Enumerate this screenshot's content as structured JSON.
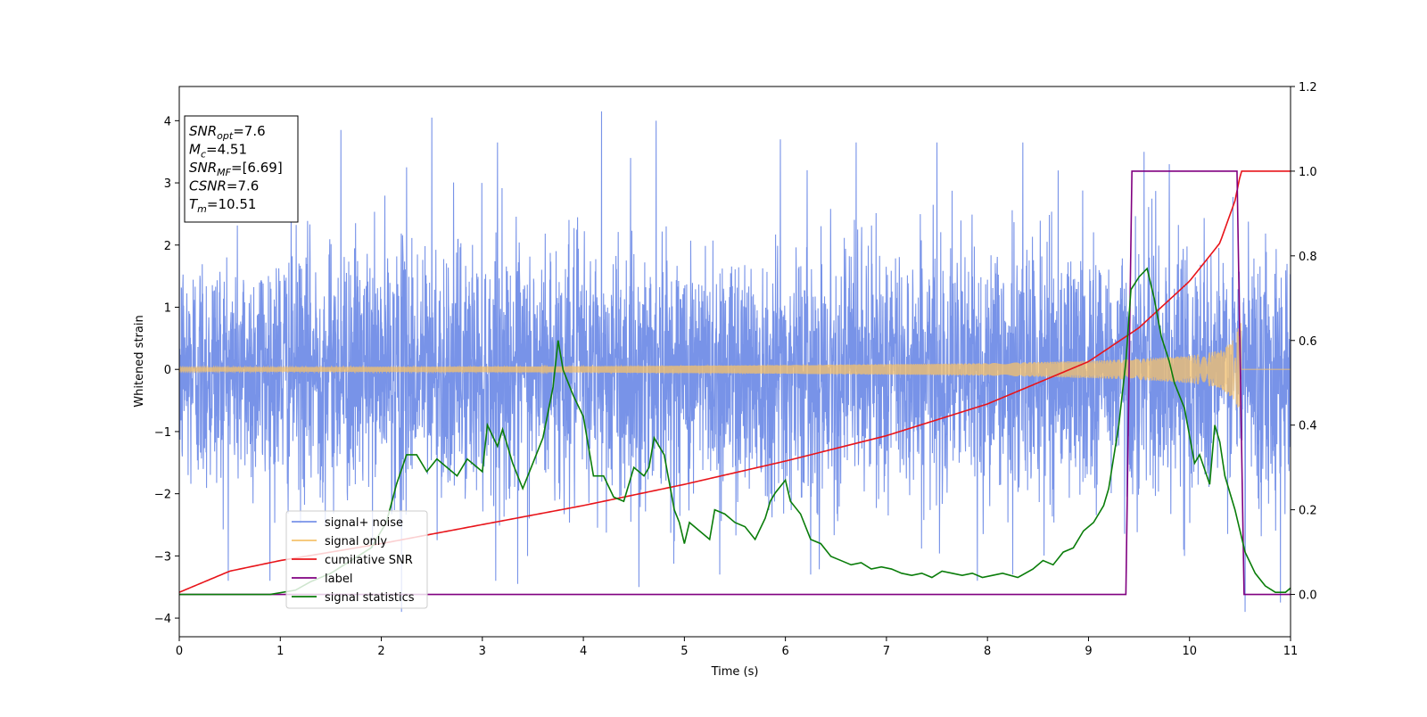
{
  "chart_data": {
    "type": "line",
    "xlabel": "Time (s)",
    "ylabel": "Whitened strain",
    "xlim": [
      0,
      11
    ],
    "ylim": [
      -4.3,
      4.55
    ],
    "ylim_right": [
      -0.1,
      1.2
    ],
    "xticks": [
      0,
      1,
      2,
      3,
      4,
      5,
      6,
      7,
      8,
      9,
      10,
      11
    ],
    "yticks": [
      -4,
      -3,
      -2,
      -1,
      0,
      1,
      2,
      3,
      4
    ],
    "yticks_right": [
      0.0,
      0.2,
      0.4,
      0.6,
      0.8,
      1.0,
      1.2
    ],
    "legend_position": "lower-left",
    "annotation": [
      {
        "base": "SNR",
        "sub": "opt",
        "value": "=7.6"
      },
      {
        "base": "M",
        "sub": "c",
        "value": "=4.51"
      },
      {
        "base": "SNR",
        "sub": "MF",
        "value": "=[6.69]"
      },
      {
        "base": "CSNR",
        "sub": "",
        "value": "=7.6"
      },
      {
        "base": "T",
        "sub": "m",
        "value": "=10.51"
      }
    ],
    "series": [
      {
        "name": "signal+ noise",
        "axis": "left",
        "color": "#7893e8",
        "noise_sigma": 1.0,
        "peaks": [
          [
            1.6,
            3.85
          ],
          [
            2.25,
            3.25
          ],
          [
            2.5,
            4.05
          ],
          [
            3.15,
            3.65
          ],
          [
            4.18,
            4.15
          ],
          [
            3.35,
            -3.45
          ],
          [
            4.72,
            4.0
          ],
          [
            5.95,
            3.7
          ],
          [
            6.7,
            3.65
          ],
          [
            7.5,
            3.65
          ],
          [
            8.35,
            3.65
          ],
          [
            8.7,
            3.2
          ],
          [
            9.55,
            3.5
          ],
          [
            9.8,
            3.3
          ],
          [
            2.2,
            -3.9
          ],
          [
            4.55,
            -3.5
          ],
          [
            5.35,
            -3.3
          ],
          [
            6.25,
            -3.3
          ],
          [
            7.9,
            -3.4
          ],
          [
            8.25,
            -3.3
          ],
          [
            9.95,
            -3.0
          ],
          [
            10.55,
            -3.9
          ],
          [
            10.9,
            -3.75
          ]
        ]
      },
      {
        "name": "signal only",
        "axis": "left",
        "color": "#f5c26b",
        "amplitude_curve": [
          [
            0,
            0.035
          ],
          [
            2,
            0.04
          ],
          [
            4,
            0.05
          ],
          [
            6,
            0.07
          ],
          [
            8,
            0.1
          ],
          [
            9,
            0.14
          ],
          [
            9.5,
            0.17
          ],
          [
            10,
            0.22
          ],
          [
            10.3,
            0.3
          ],
          [
            10.45,
            0.5
          ],
          [
            10.51,
            0.8
          ],
          [
            10.52,
            0
          ]
        ]
      },
      {
        "name": "cumilative SNR",
        "axis": "right",
        "color": "#e8141a",
        "points": [
          [
            0,
            0.005
          ],
          [
            0.5,
            0.055
          ],
          [
            1,
            0.08
          ],
          [
            2,
            0.12
          ],
          [
            3,
            0.165
          ],
          [
            4,
            0.21
          ],
          [
            5,
            0.26
          ],
          [
            6,
            0.315
          ],
          [
            7,
            0.375
          ],
          [
            8,
            0.45
          ],
          [
            8.5,
            0.5
          ],
          [
            9,
            0.55
          ],
          [
            9.5,
            0.63
          ],
          [
            10,
            0.74
          ],
          [
            10.3,
            0.83
          ],
          [
            10.45,
            0.93
          ],
          [
            10.51,
            1.0
          ],
          [
            11,
            1.0
          ]
        ]
      },
      {
        "name": "label",
        "axis": "right",
        "color": "#800080",
        "points": [
          [
            0,
            0.0
          ],
          [
            9.37,
            0.0
          ],
          [
            9.43,
            1.0
          ],
          [
            10.47,
            1.0
          ],
          [
            10.54,
            0.0
          ],
          [
            11,
            0.0
          ]
        ]
      },
      {
        "name": "signal statistics",
        "axis": "right",
        "color": "#0a7d0a",
        "points": [
          [
            0,
            0.0
          ],
          [
            0.9,
            0.0
          ],
          [
            1.15,
            0.01
          ],
          [
            1.3,
            0.03
          ],
          [
            1.5,
            0.05
          ],
          [
            1.7,
            0.08
          ],
          [
            1.9,
            0.11
          ],
          [
            2.05,
            0.17
          ],
          [
            2.15,
            0.26
          ],
          [
            2.25,
            0.33
          ],
          [
            2.35,
            0.33
          ],
          [
            2.45,
            0.29
          ],
          [
            2.55,
            0.32
          ],
          [
            2.65,
            0.3
          ],
          [
            2.75,
            0.28
          ],
          [
            2.85,
            0.32
          ],
          [
            2.95,
            0.3
          ],
          [
            3.0,
            0.29
          ],
          [
            3.05,
            0.4
          ],
          [
            3.15,
            0.35
          ],
          [
            3.2,
            0.39
          ],
          [
            3.3,
            0.31
          ],
          [
            3.4,
            0.25
          ],
          [
            3.5,
            0.31
          ],
          [
            3.6,
            0.37
          ],
          [
            3.7,
            0.49
          ],
          [
            3.75,
            0.6
          ],
          [
            3.8,
            0.53
          ],
          [
            3.9,
            0.47
          ],
          [
            4.0,
            0.42
          ],
          [
            4.1,
            0.28
          ],
          [
            4.2,
            0.28
          ],
          [
            4.3,
            0.23
          ],
          [
            4.4,
            0.22
          ],
          [
            4.5,
            0.3
          ],
          [
            4.6,
            0.28
          ],
          [
            4.65,
            0.3
          ],
          [
            4.7,
            0.37
          ],
          [
            4.8,
            0.33
          ],
          [
            4.9,
            0.2
          ],
          [
            4.95,
            0.17
          ],
          [
            5.0,
            0.12
          ],
          [
            5.05,
            0.17
          ],
          [
            5.15,
            0.15
          ],
          [
            5.25,
            0.13
          ],
          [
            5.3,
            0.2
          ],
          [
            5.4,
            0.19
          ],
          [
            5.5,
            0.17
          ],
          [
            5.6,
            0.16
          ],
          [
            5.7,
            0.13
          ],
          [
            5.8,
            0.18
          ],
          [
            5.85,
            0.22
          ],
          [
            5.9,
            0.24
          ],
          [
            6.0,
            0.27
          ],
          [
            6.05,
            0.22
          ],
          [
            6.15,
            0.19
          ],
          [
            6.25,
            0.13
          ],
          [
            6.35,
            0.12
          ],
          [
            6.45,
            0.09
          ],
          [
            6.55,
            0.08
          ],
          [
            6.65,
            0.07
          ],
          [
            6.75,
            0.075
          ],
          [
            6.85,
            0.06
          ],
          [
            6.95,
            0.065
          ],
          [
            7.05,
            0.06
          ],
          [
            7.15,
            0.05
          ],
          [
            7.25,
            0.045
          ],
          [
            7.35,
            0.05
          ],
          [
            7.45,
            0.04
          ],
          [
            7.55,
            0.055
          ],
          [
            7.65,
            0.05
          ],
          [
            7.75,
            0.045
          ],
          [
            7.85,
            0.05
          ],
          [
            7.95,
            0.04
          ],
          [
            8.05,
            0.045
          ],
          [
            8.15,
            0.05
          ],
          [
            8.3,
            0.04
          ],
          [
            8.45,
            0.06
          ],
          [
            8.55,
            0.08
          ],
          [
            8.65,
            0.07
          ],
          [
            8.75,
            0.1
          ],
          [
            8.85,
            0.11
          ],
          [
            8.95,
            0.15
          ],
          [
            9.05,
            0.17
          ],
          [
            9.15,
            0.21
          ],
          [
            9.2,
            0.25
          ],
          [
            9.3,
            0.4
          ],
          [
            9.37,
            0.55
          ],
          [
            9.42,
            0.72
          ],
          [
            9.5,
            0.75
          ],
          [
            9.58,
            0.77
          ],
          [
            9.65,
            0.7
          ],
          [
            9.72,
            0.61
          ],
          [
            9.8,
            0.55
          ],
          [
            9.85,
            0.5
          ],
          [
            9.95,
            0.44
          ],
          [
            10.05,
            0.31
          ],
          [
            10.1,
            0.33
          ],
          [
            10.2,
            0.26
          ],
          [
            10.25,
            0.4
          ],
          [
            10.3,
            0.36
          ],
          [
            10.35,
            0.28
          ],
          [
            10.45,
            0.2
          ],
          [
            10.55,
            0.1
          ],
          [
            10.65,
            0.05
          ],
          [
            10.75,
            0.02
          ],
          [
            10.85,
            0.005
          ],
          [
            10.95,
            0.005
          ],
          [
            11,
            0.015
          ]
        ]
      }
    ]
  }
}
